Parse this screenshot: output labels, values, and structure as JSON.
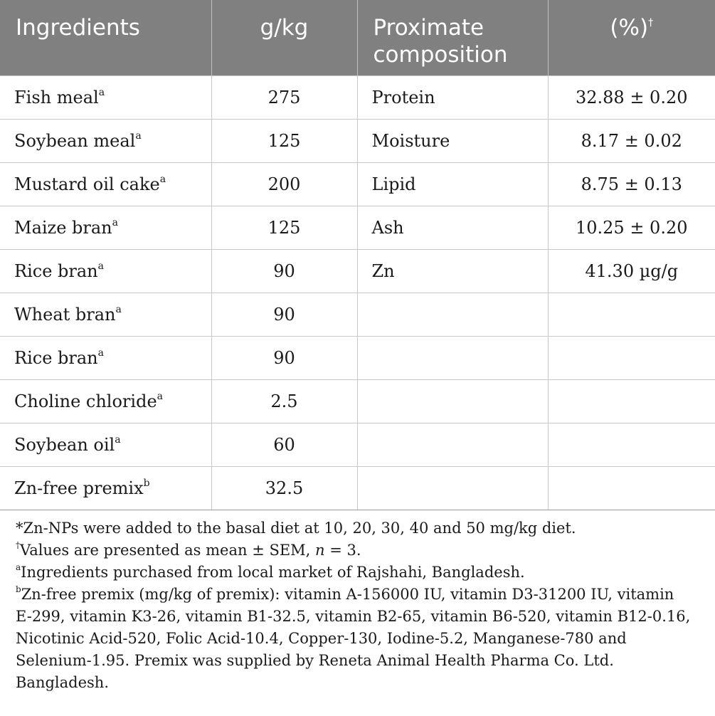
{
  "header": {
    "col1": "Ingredients",
    "col2": "g/kg",
    "col3": "Proximate composition",
    "col4": "(%)",
    "col4_mark": "†"
  },
  "rows": [
    {
      "ingredient": "Fish meal",
      "sup": "a",
      "gkg": "275",
      "component": "Protein",
      "value": "32.88 ± 0.20"
    },
    {
      "ingredient": "Soybean meal",
      "sup": "a",
      "gkg": "125",
      "component": "Moisture",
      "value": "8.17 ± 0.02"
    },
    {
      "ingredient": "Mustard oil cake",
      "sup": "a",
      "gkg": "200",
      "component": "Lipid",
      "value": "8.75 ± 0.13"
    },
    {
      "ingredient": "Maize bran",
      "sup": "a",
      "gkg": "125",
      "component": "Ash",
      "value": "10.25 ± 0.20"
    },
    {
      "ingredient": "Rice bran",
      "sup": "a",
      "gkg": "90",
      "component": "Zn",
      "value": "41.30 µg/g"
    },
    {
      "ingredient": "Wheat bran",
      "sup": "a",
      "gkg": "90",
      "component": "",
      "value": ""
    },
    {
      "ingredient": "Rice bran",
      "sup": "a",
      "gkg": "90",
      "component": "",
      "value": ""
    },
    {
      "ingredient": "Choline chloride",
      "sup": "a",
      "gkg": "2.5",
      "component": "",
      "value": ""
    },
    {
      "ingredient": "Soybean oil",
      "sup": "a",
      "gkg": "60",
      "component": "",
      "value": ""
    },
    {
      "ingredient": "Zn-free premix",
      "sup": "b",
      "gkg": "32.5",
      "component": "",
      "value": ""
    }
  ],
  "notes": {
    "star": "*Zn-NPs were added to the basal diet at 10, 20, 30, 40 and 50 mg/kg diet.",
    "dagger_mark": "†",
    "dagger_text_before": "Values are presented as mean ± SEM, ",
    "dagger_n": "n",
    "dagger_text_after": " = 3.",
    "a_mark": "a",
    "a_text": "Ingredients purchased from local market of Rajshahi, Bangladesh.",
    "b_mark": "b",
    "b_line1": "Zn-free premix (mg/kg of premix): vitamin A-156000 IU, vitamin D3-31200 IU, vitamin",
    "b_line2": "E-299, vitamin K3-26, vitamin B1-32.5, vitamin B2-65, vitamin B6-520, vitamin B12-0.16,",
    "b_line3": "Nicotinic Acid-520, Folic Acid-10.4, Copper-130, Iodine-5.2, Manganese-780 and",
    "b_line4": "Selenium-1.95. Premix was supplied by Reneta Animal Health Pharma Co. Ltd. Bangladesh."
  }
}
